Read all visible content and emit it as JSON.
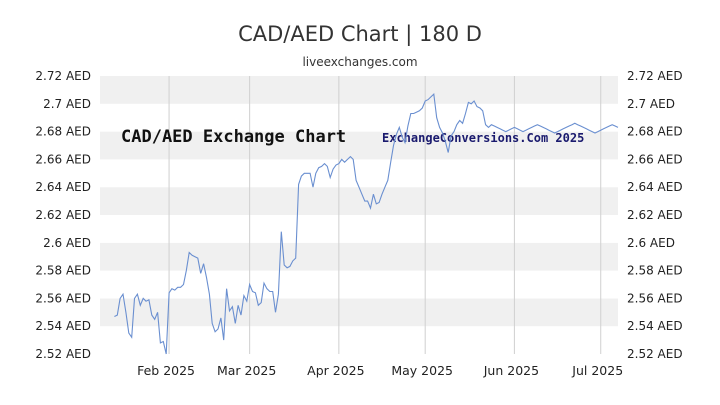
{
  "title": "CAD/AED Chart | 180 D",
  "subtitle": "liveexchanges.com",
  "chart_data": {
    "type": "line",
    "title": "CAD/AED Chart | 180 D",
    "inner_title": "CAD/AED Exchange Chart",
    "watermark": "ExchangeConversions.Com 2025",
    "xlabel": "",
    "ylabel": "",
    "y_unit": "AED",
    "ylim": [
      2.52,
      2.72
    ],
    "y_ticks": [
      "2.52",
      "2.54",
      "2.56",
      "2.58",
      "2.6",
      "2.62",
      "2.64",
      "2.66",
      "2.68",
      "2.7",
      "2.72"
    ],
    "x_range_days": [
      0,
      180
    ],
    "x_ticks": [
      {
        "label": "Feb 2025",
        "day": 24
      },
      {
        "label": "Mar 2025",
        "day": 52
      },
      {
        "label": "Apr 2025",
        "day": 83
      },
      {
        "label": "May 2025",
        "day": 113
      },
      {
        "label": "Jun 2025",
        "day": 144
      },
      {
        "label": "Jul 2025",
        "day": 174
      }
    ],
    "series": [
      {
        "name": "CAD/AED",
        "color": "#6a8fd0",
        "x": [
          5,
          6,
          7,
          8,
          9,
          10,
          11,
          12,
          13,
          14,
          15,
          16,
          17,
          18,
          19,
          20,
          21,
          22,
          23,
          24,
          25,
          26,
          27,
          28,
          29,
          30,
          31,
          32,
          33,
          34,
          35,
          36,
          37,
          38,
          39,
          40,
          41,
          42,
          43,
          44,
          45,
          46,
          47,
          48,
          49,
          50,
          51,
          52,
          53,
          54,
          55,
          56,
          57,
          58,
          59,
          60,
          61,
          62,
          63,
          64,
          65,
          66,
          67,
          68,
          69,
          70,
          71,
          72,
          73,
          74,
          75,
          76,
          77,
          78,
          79,
          80,
          81,
          82,
          83,
          84,
          85,
          86,
          87,
          88,
          89,
          90,
          91,
          92,
          93,
          94,
          95,
          96,
          97,
          98,
          99,
          100,
          101,
          102,
          103,
          104,
          105,
          106,
          107,
          108,
          109,
          110,
          111,
          112,
          113,
          114,
          115,
          116,
          117,
          118,
          119,
          120,
          121,
          122,
          123,
          124,
          125,
          126,
          127,
          128,
          129,
          130,
          131,
          132,
          133,
          134,
          135,
          136,
          137,
          138,
          139,
          140,
          141,
          142,
          143,
          144,
          145,
          146,
          147,
          148,
          149,
          150,
          151,
          152,
          153,
          154,
          155,
          156,
          157,
          158,
          159,
          160,
          161,
          162,
          163,
          164,
          165,
          166,
          167,
          168,
          169,
          170,
          171,
          172,
          173,
          174,
          175,
          176,
          177,
          178,
          179,
          180
        ],
        "values": [
          2.547,
          2.548,
          2.56,
          2.563,
          2.55,
          2.535,
          2.532,
          2.56,
          2.563,
          2.555,
          2.56,
          2.558,
          2.559,
          2.548,
          2.545,
          2.55,
          2.528,
          2.529,
          2.52,
          2.564,
          2.567,
          2.566,
          2.568,
          2.568,
          2.57,
          2.58,
          2.593,
          2.591,
          2.59,
          2.589,
          2.578,
          2.585,
          2.575,
          2.563,
          2.542,
          2.536,
          2.538,
          2.546,
          2.53,
          2.567,
          2.551,
          2.554,
          2.542,
          2.555,
          2.548,
          2.562,
          2.558,
          2.57,
          2.565,
          2.564,
          2.555,
          2.557,
          2.571,
          2.567,
          2.565,
          2.565,
          2.55,
          2.563,
          2.608,
          2.584,
          2.582,
          2.583,
          2.587,
          2.589,
          2.642,
          2.648,
          2.65,
          2.65,
          2.65,
          2.64,
          2.65,
          2.654,
          2.655,
          2.657,
          2.655,
          2.647,
          2.653,
          2.656,
          2.657,
          2.66,
          2.658,
          2.66,
          2.662,
          2.66,
          2.645,
          2.64,
          2.635,
          2.63,
          2.63,
          2.625,
          2.635,
          2.628,
          2.629,
          2.635,
          2.64,
          2.645,
          2.658,
          2.67,
          2.678,
          2.683,
          2.676,
          2.672,
          2.684,
          2.693,
          2.693,
          2.694,
          2.695,
          2.697,
          2.702,
          2.703,
          2.705,
          2.707,
          2.69,
          2.683,
          2.679,
          2.673,
          2.665,
          2.677,
          2.68,
          2.685,
          2.688,
          2.686,
          2.693,
          2.701,
          2.7,
          2.702,
          2.698,
          2.697,
          2.695,
          2.685,
          2.683,
          2.685,
          2.684,
          2.683,
          2.682,
          2.681,
          2.68,
          2.681,
          2.682,
          2.683,
          2.682,
          2.681,
          2.68,
          2.681,
          2.682,
          2.683,
          2.684,
          2.685,
          2.684,
          2.683,
          2.682,
          2.681,
          2.68,
          2.679,
          2.68,
          2.681,
          2.682,
          2.683,
          2.684,
          2.685,
          2.686,
          2.685,
          2.684,
          2.683,
          2.682,
          2.681,
          2.68,
          2.679,
          2.68,
          2.681,
          2.682,
          2.683,
          2.684,
          2.685,
          2.684,
          2.683
        ]
      }
    ]
  }
}
